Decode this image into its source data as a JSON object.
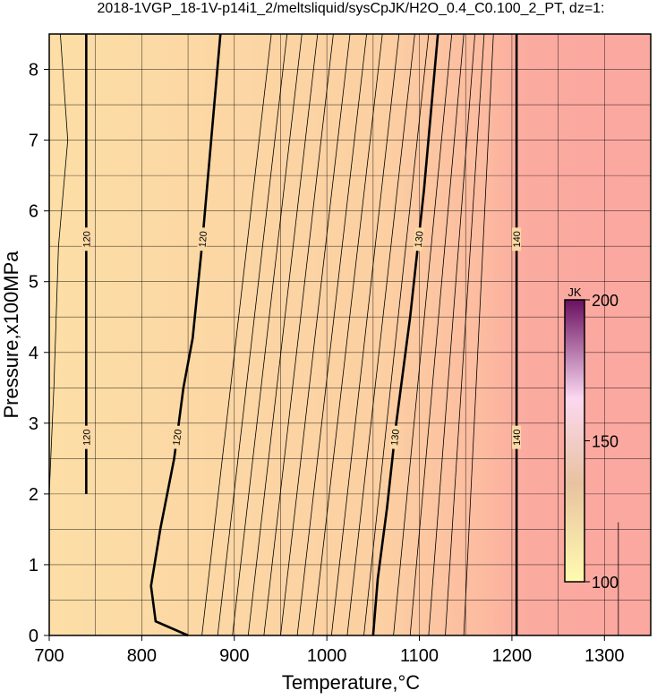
{
  "chart_data": {
    "type": "contour",
    "title": "2018-1VGP_18-1V-p14i1_2/meltsliquid/sysCpJK/H2O_0.4_C0.100_2_PT, dz=1:",
    "x_label": "Temperature,°C",
    "y_label": "Pressure,x100MPa",
    "xlim": [
      700,
      1350
    ],
    "ylim": [
      0,
      8.5
    ],
    "xticks": [
      700,
      800,
      900,
      1000,
      1100,
      1200,
      1300
    ],
    "yticks": [
      0,
      1,
      2,
      3,
      4,
      5,
      6,
      7,
      8
    ],
    "xgrid_minor": [
      750,
      850,
      950,
      1050,
      1150,
      1250
    ],
    "ygrid_minor": [
      0.5,
      1.5,
      2.5,
      3.5,
      4.5,
      5.5,
      6.5,
      7.5
    ],
    "contours": [
      {
        "level": 120,
        "x": [
          740,
          740
        ],
        "y": [
          2.0,
          8.5
        ]
      },
      {
        "level": 120,
        "x": [
          850,
          815,
          810,
          820,
          835,
          845,
          855,
          865,
          875,
          885
        ],
        "y": [
          0,
          0.2,
          0.7,
          1.5,
          2.5,
          3.5,
          4.2,
          5.5,
          7,
          8.5
        ]
      },
      {
        "level": 130,
        "x": [
          1050,
          1055,
          1065,
          1075,
          1090,
          1105,
          1120
        ],
        "y": [
          0,
          0.8,
          1.8,
          3,
          4.5,
          6.3,
          8.5
        ]
      },
      {
        "level": 140,
        "x": [
          1205,
          1205
        ],
        "y": [
          0,
          8.5
        ]
      }
    ],
    "minor_contours": [
      {
        "x": [
          700,
          705,
          710,
          720,
          712
        ],
        "y": [
          2,
          3.5,
          5.5,
          7,
          8.5
        ]
      },
      {
        "x": [
          865,
          940
        ],
        "y": [
          0,
          8.5
        ]
      },
      {
        "x": [
          882,
          957
        ],
        "y": [
          0,
          8.5
        ]
      },
      {
        "x": [
          898,
          973
        ],
        "y": [
          0,
          8.5
        ]
      },
      {
        "x": [
          915,
          990
        ],
        "y": [
          0,
          8.5
        ]
      },
      {
        "x": [
          932,
          1007
        ],
        "y": [
          0,
          8.5
        ]
      },
      {
        "x": [
          950,
          1025
        ],
        "y": [
          0,
          8.5
        ]
      },
      {
        "x": [
          968,
          1043
        ],
        "y": [
          0,
          8.5
        ]
      },
      {
        "x": [
          985,
          1060
        ],
        "y": [
          0,
          8.5
        ]
      },
      {
        "x": [
          1005,
          1078
        ],
        "y": [
          0,
          8.5
        ]
      },
      {
        "x": [
          1022,
          1095
        ],
        "y": [
          0,
          8.5
        ]
      },
      {
        "x": [
          1040,
          1110
        ],
        "y": [
          0,
          8.5
        ]
      },
      {
        "x": [
          1072,
          1135
        ],
        "y": [
          0,
          8.5
        ]
      },
      {
        "x": [
          1090,
          1148
        ],
        "y": [
          0,
          8.5
        ]
      },
      {
        "x": [
          1110,
          1160
        ],
        "y": [
          0,
          8.5
        ]
      },
      {
        "x": [
          1128,
          1170
        ],
        "y": [
          0,
          8.5
        ]
      },
      {
        "x": [
          1148,
          1180
        ],
        "y": [
          0,
          8.5
        ]
      },
      {
        "x": [
          1315,
          1315
        ],
        "y": [
          0,
          1.6
        ]
      }
    ],
    "colorbar": {
      "label": "JK",
      "lim": [
        100,
        200
      ],
      "ticks": [
        100,
        150,
        200
      ]
    }
  }
}
